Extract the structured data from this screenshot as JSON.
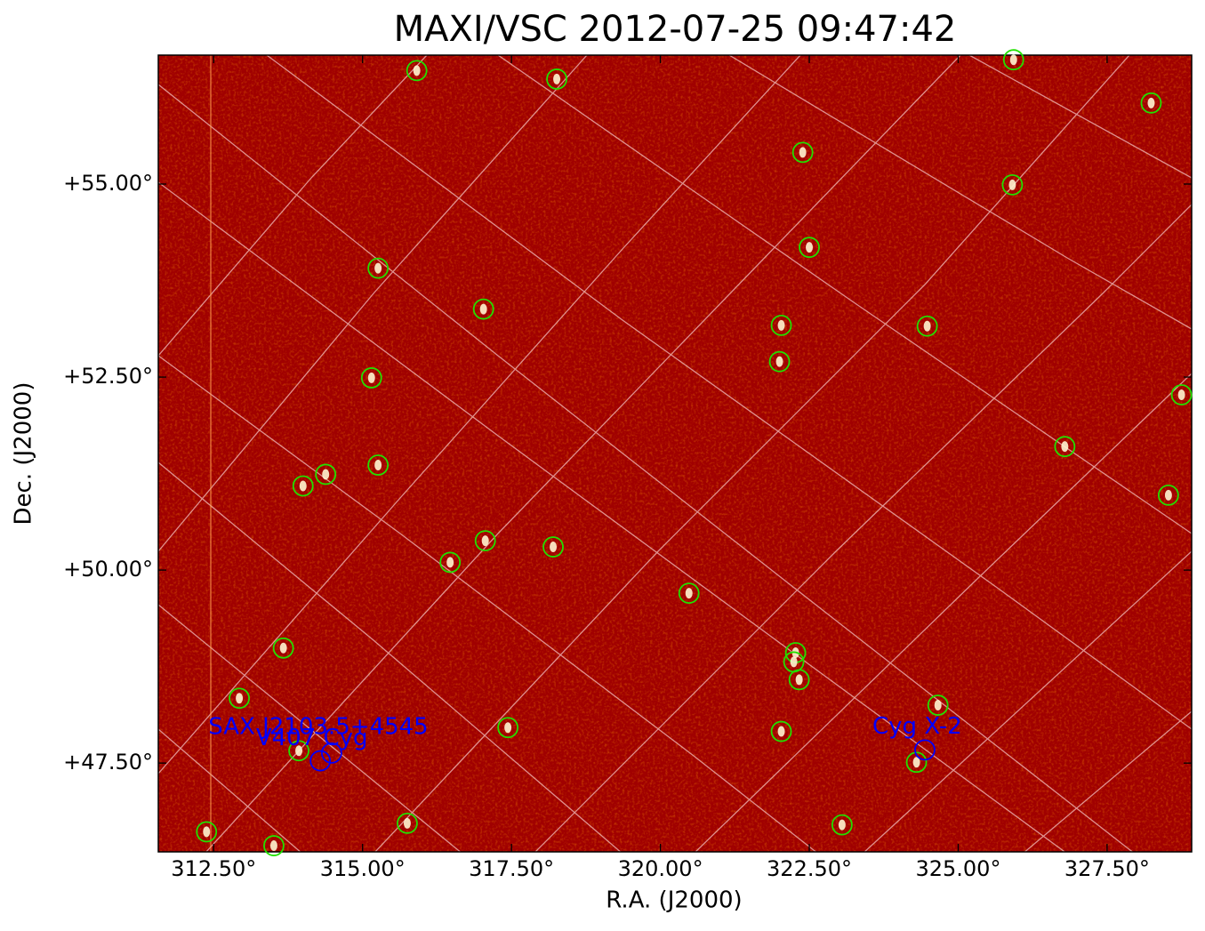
{
  "chart_data": {
    "type": "image",
    "title": "MAXI/VSC 2012-07-25 09:47:42",
    "xlabel": "R.A. (J2000)",
    "ylabel": "Dec. (J2000)",
    "xlim": [
      311.57,
      328.92
    ],
    "ylim": [
      46.35,
      56.67
    ],
    "xticks": [
      {
        "value": 312.5,
        "label": "312.50°"
      },
      {
        "value": 315,
        "label": "315.00°"
      },
      {
        "value": 317.5,
        "label": "317.50°"
      },
      {
        "value": 320,
        "label": "320.00°"
      },
      {
        "value": 322.5,
        "label": "322.50°"
      },
      {
        "value": 325,
        "label": "325.00°"
      },
      {
        "value": 327.5,
        "label": "327.50°"
      }
    ],
    "yticks": [
      {
        "value": 47.5,
        "label": "+47.50°"
      },
      {
        "value": 50,
        "label": "+50.00°"
      },
      {
        "value": 52.5,
        "label": "+52.50°"
      },
      {
        "value": 55,
        "label": "+55.00°"
      }
    ],
    "series": [
      {
        "color": "#22e000",
        "x": [
          315.91,
          318.26,
          325.93,
          328.24,
          322.39,
          325.91,
          322.5,
          315.26,
          317.03,
          322.03,
          324.48,
          322.0,
          315.15,
          328.75,
          326.79,
          315.26,
          314.38,
          314.0,
          328.53,
          317.06,
          318.2,
          316.47,
          320.48,
          313.67,
          322.27,
          322.24,
          322.33,
          312.93,
          324.66,
          317.44,
          322.03,
          313.93,
          324.3,
          312.38,
          315.75,
          323.05,
          313.51
        ],
        "values": [
          56.47,
          56.36,
          56.61,
          56.05,
          55.41,
          54.99,
          54.18,
          53.91,
          53.38,
          53.17,
          53.16,
          52.7,
          52.49,
          52.27,
          51.6,
          51.36,
          51.24,
          51.09,
          50.97,
          50.38,
          50.3,
          50.1,
          49.7,
          48.99,
          48.93,
          48.81,
          48.58,
          48.34,
          48.25,
          47.96,
          47.91,
          47.66,
          47.51,
          46.61,
          46.72,
          46.7,
          46.43
        ]
      },
      {
        "color": "#0000ff",
        "x": [
          314.48,
          314.29,
          324.44
        ],
        "values": [
          47.63,
          47.53,
          47.67
        ]
      }
    ],
    "annotations": [
      {
        "text": "SAX J2103.5+4545",
        "x": 312.41,
        "y": 47.96,
        "color": "#0000ff"
      },
      {
        "text": "V407 Cyg",
        "x": 313.21,
        "y": 47.82,
        "color": "#0000ff"
      },
      {
        "text": "Cyg X-2",
        "x": 323.56,
        "y": 47.97,
        "color": "#0000ff"
      }
    ]
  }
}
